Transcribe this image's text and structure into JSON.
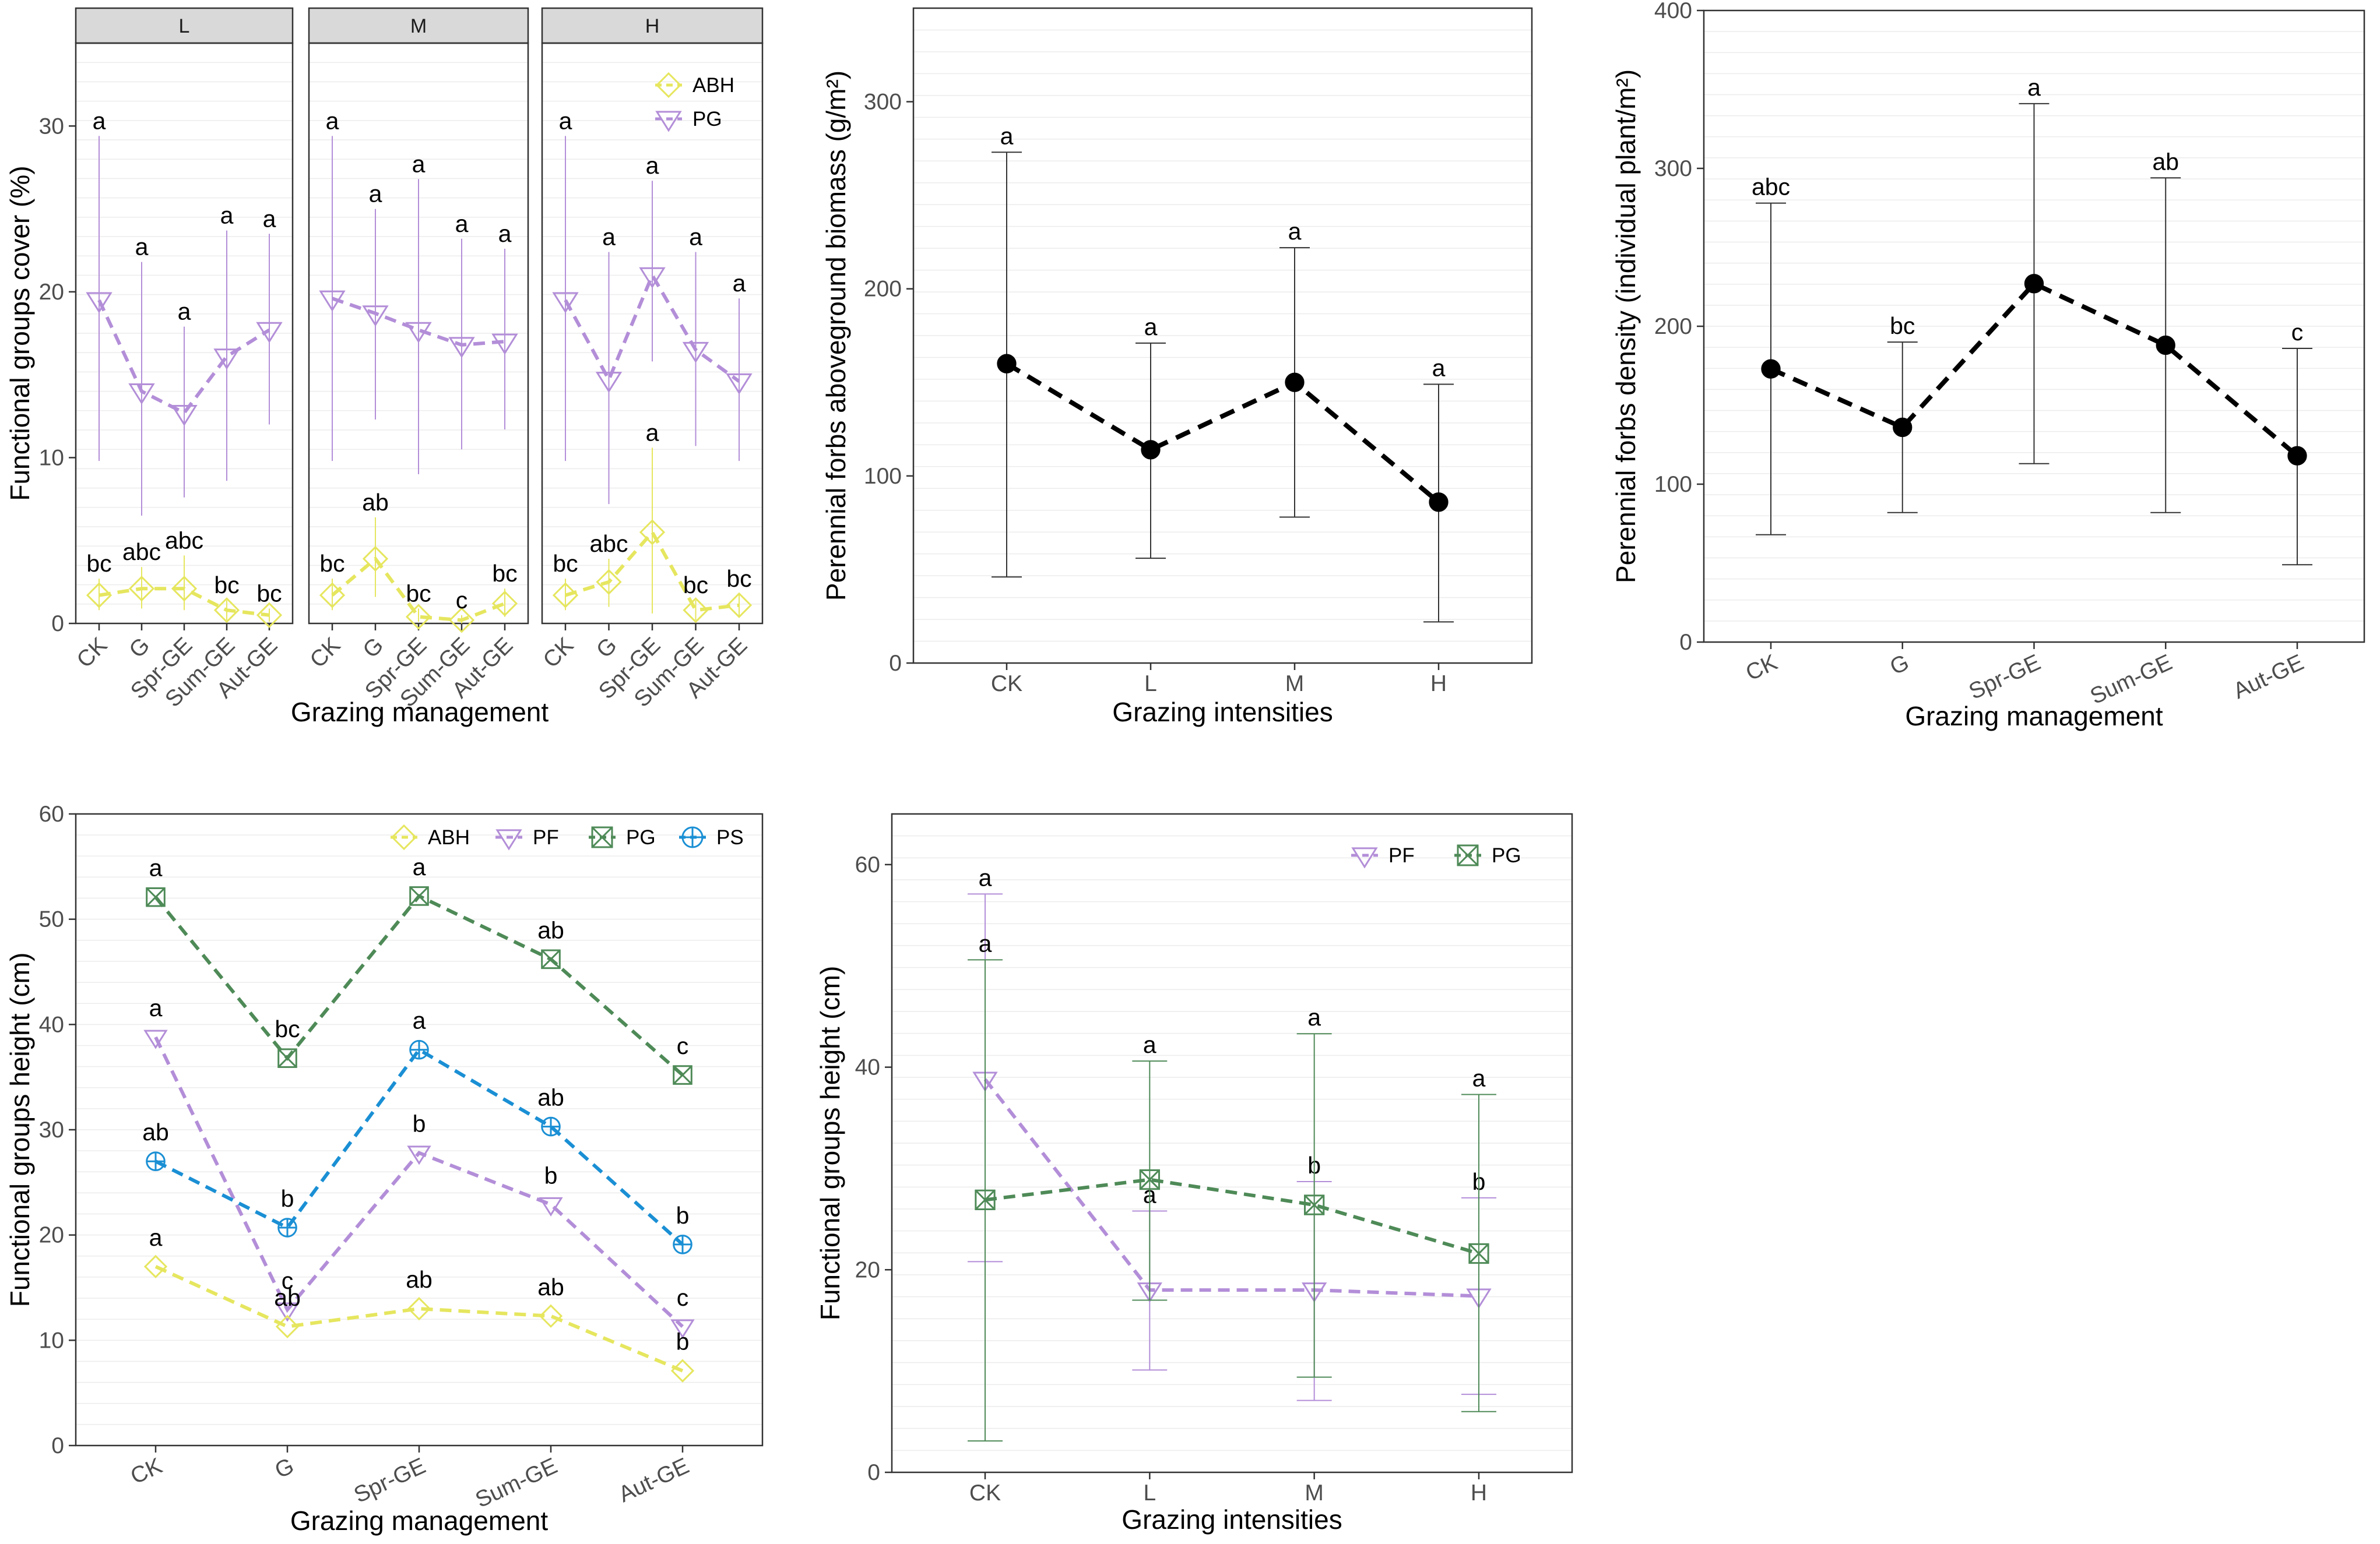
{
  "chart_data": [
    {
      "id": "p1",
      "type": "line",
      "facets": [
        "L",
        "M",
        "H"
      ],
      "categories": [
        "CK",
        "G",
        "Spr-GE",
        "Sum-GE",
        "Aut-GE"
      ],
      "xlabel": "Grazing management",
      "ylabel": "Functional groups cover (%)",
      "ylim": [
        0,
        35
      ],
      "yticks": [
        "0",
        "10",
        "20",
        "30"
      ],
      "legend": [
        {
          "name": "ABH",
          "color": "#e6e65f",
          "marker": "diamond"
        },
        {
          "name": "PG",
          "color": "#b38ed8",
          "marker": "triangle-down"
        }
      ],
      "panels": [
        {
          "facet": "L",
          "series": [
            {
              "name": "PG",
              "color": "#b38ed8",
              "marker": "triangle-down",
              "values": [
                19.5,
                14.0,
                12.7,
                16.1,
                17.7
              ],
              "err_low": [
                9.8,
                6.5,
                7.6,
                8.6,
                12.0
              ],
              "err_high": [
                29.4,
                21.8,
                17.9,
                23.7,
                23.5
              ],
              "labels": [
                "a",
                "a",
                "a",
                "a",
                "a"
              ]
            },
            {
              "name": "ABH",
              "color": "#e6e65f",
              "marker": "diamond",
              "values": [
                1.7,
                2.1,
                2.1,
                0.8,
                0.5
              ],
              "err_low": [
                0.8,
                0.9,
                0.8,
                0.2,
                0.1
              ],
              "err_high": [
                2.7,
                3.4,
                4.1,
                1.4,
                0.9
              ],
              "labels": [
                "bc",
                "abc",
                "abc",
                "bc",
                "bc"
              ]
            }
          ]
        },
        {
          "facet": "M",
          "series": [
            {
              "name": "PG",
              "color": "#b38ed8",
              "marker": "triangle-down",
              "values": [
                19.6,
                18.7,
                17.7,
                16.8,
                17.0
              ],
              "err_low": [
                9.8,
                12.3,
                9.0,
                10.5,
                11.7
              ],
              "err_high": [
                29.4,
                25.0,
                26.8,
                23.2,
                22.6
              ],
              "labels": [
                "a",
                "a",
                "a",
                "a",
                "a"
              ]
            },
            {
              "name": "ABH",
              "color": "#e6e65f",
              "marker": "diamond",
              "values": [
                1.7,
                3.9,
                0.4,
                0.2,
                1.2
              ],
              "err_low": [
                0.8,
                1.6,
                0.1,
                0.0,
                0.4
              ],
              "err_high": [
                2.7,
                6.4,
                0.9,
                0.5,
                2.1
              ],
              "labels": [
                "bc",
                "ab",
                "bc",
                "c",
                "bc"
              ]
            }
          ]
        },
        {
          "facet": "H",
          "series": [
            {
              "name": "PG",
              "color": "#b38ed8",
              "marker": "triangle-down",
              "values": [
                19.5,
                14.7,
                21.0,
                16.5,
                14.6
              ],
              "err_low": [
                9.8,
                7.2,
                15.8,
                10.7,
                9.8
              ],
              "err_high": [
                29.4,
                22.4,
                26.7,
                22.4,
                19.6
              ],
              "labels": [
                "a",
                "a",
                "a",
                "a",
                "a"
              ]
            },
            {
              "name": "ABH",
              "color": "#e6e65f",
              "marker": "diamond",
              "values": [
                1.7,
                2.5,
                5.5,
                0.8,
                1.1
              ],
              "err_low": [
                0.8,
                1.0,
                0.6,
                0.2,
                0.4
              ],
              "err_high": [
                2.7,
                3.9,
                10.6,
                1.4,
                1.8
              ],
              "labels": [
                "bc",
                "abc",
                "a",
                "bc",
                "bc"
              ]
            }
          ]
        }
      ]
    },
    {
      "id": "p2",
      "type": "line",
      "categories": [
        "CK",
        "L",
        "M",
        "H"
      ],
      "xlabel": "Grazing intensities",
      "ylabel": "Perennial forbs aboveground biomass (g/m²)",
      "ylim": [
        0,
        350
      ],
      "yticks": [
        "0",
        "100",
        "200",
        "300"
      ],
      "series": [
        {
          "name": "PF",
          "color": "#000000",
          "marker": "circle",
          "values": [
            160,
            114,
            150,
            86
          ],
          "err_low": [
            46,
            56,
            78,
            22
          ],
          "err_high": [
            273,
            171,
            222,
            149
          ],
          "labels": [
            "a",
            "a",
            "a",
            "a"
          ]
        }
      ]
    },
    {
      "id": "p3",
      "type": "line",
      "categories": [
        "CK",
        "G",
        "Spr-GE",
        "Sum-GE",
        "Aut-GE"
      ],
      "xlabel": "Grazing management",
      "ylabel": "Perennial forbs density (individual plant/m²)",
      "ylim": [
        0,
        400
      ],
      "yticks": [
        "0",
        "100",
        "200",
        "300",
        "400"
      ],
      "series": [
        {
          "name": "PF",
          "color": "#000000",
          "marker": "circle",
          "values": [
            173,
            136,
            227,
            188,
            118
          ],
          "err_low": [
            68,
            82,
            113,
            82,
            49
          ],
          "err_high": [
            278,
            190,
            341,
            294,
            186
          ],
          "labels": [
            "abc",
            "bc",
            "a",
            "ab",
            "c"
          ]
        }
      ]
    },
    {
      "id": "p4",
      "type": "line",
      "categories": [
        "CK",
        "G",
        "Spr-GE",
        "Sum-GE",
        "Aut-GE"
      ],
      "xlabel": "Grazing management",
      "ylabel": "Functional groups height (cm)",
      "ylim": [
        0,
        60
      ],
      "yticks": [
        "0",
        "10",
        "20",
        "30",
        "40",
        "50",
        "60"
      ],
      "legend": [
        {
          "name": "ABH",
          "color": "#e6e65f",
          "marker": "diamond"
        },
        {
          "name": "PF",
          "color": "#b38ed8",
          "marker": "triangle-down"
        },
        {
          "name": "PG",
          "color": "#4e8a57",
          "marker": "box-x"
        },
        {
          "name": "PS",
          "color": "#1a8fd4",
          "marker": "circle-plus"
        }
      ],
      "series": [
        {
          "name": "PG",
          "color": "#4e8a57",
          "marker": "box-x",
          "values": [
            52.1,
            36.8,
            52.2,
            46.2,
            35.2
          ],
          "labels": [
            "a",
            "bc",
            "a",
            "ab",
            "c"
          ]
        },
        {
          "name": "PF",
          "color": "#b38ed8",
          "marker": "triangle-down",
          "values": [
            38.8,
            12.9,
            27.8,
            22.9,
            11.3
          ],
          "labels": [
            "a",
            "c",
            "b",
            "b",
            "c"
          ]
        },
        {
          "name": "PS",
          "color": "#1a8fd4",
          "marker": "circle-plus",
          "values": [
            27.0,
            20.7,
            37.6,
            30.3,
            19.1
          ],
          "labels": [
            "ab",
            "b",
            "a",
            "ab",
            "b"
          ]
        },
        {
          "name": "ABH",
          "color": "#e6e65f",
          "marker": "diamond",
          "values": [
            17.0,
            11.3,
            13.0,
            12.3,
            7.1
          ],
          "labels": [
            "a",
            "ab",
            "ab",
            "ab",
            "b"
          ]
        }
      ]
    },
    {
      "id": "p5",
      "type": "line",
      "categories": [
        "CK",
        "L",
        "M",
        "H"
      ],
      "xlabel": "Grazing intensities",
      "ylabel": "Functional groups height (cm)",
      "ylim": [
        0,
        65
      ],
      "yticks": [
        "0",
        "20",
        "40",
        "60"
      ],
      "legend": [
        {
          "name": "PF",
          "color": "#b38ed8",
          "marker": "triangle-down"
        },
        {
          "name": "PG",
          "color": "#4e8a57",
          "marker": "box-x"
        }
      ],
      "series": [
        {
          "name": "PF",
          "color": "#b38ed8",
          "marker": "triangle-down",
          "values": [
            38.8,
            18.0,
            18.0,
            17.4
          ],
          "err_low": [
            20.8,
            10.1,
            7.1,
            7.7
          ],
          "err_high": [
            57.1,
            25.8,
            28.7,
            27.1
          ],
          "labels": [
            "a",
            "a",
            "b",
            "b"
          ]
        },
        {
          "name": "PG",
          "color": "#4e8a57",
          "marker": "box-x",
          "values": [
            26.9,
            28.9,
            26.4,
            21.6
          ],
          "err_low": [
            3.1,
            17.0,
            9.4,
            6.0
          ],
          "err_high": [
            50.6,
            40.6,
            43.3,
            37.3
          ],
          "labels": [
            "a",
            "a",
            "a",
            "a"
          ]
        }
      ]
    }
  ]
}
